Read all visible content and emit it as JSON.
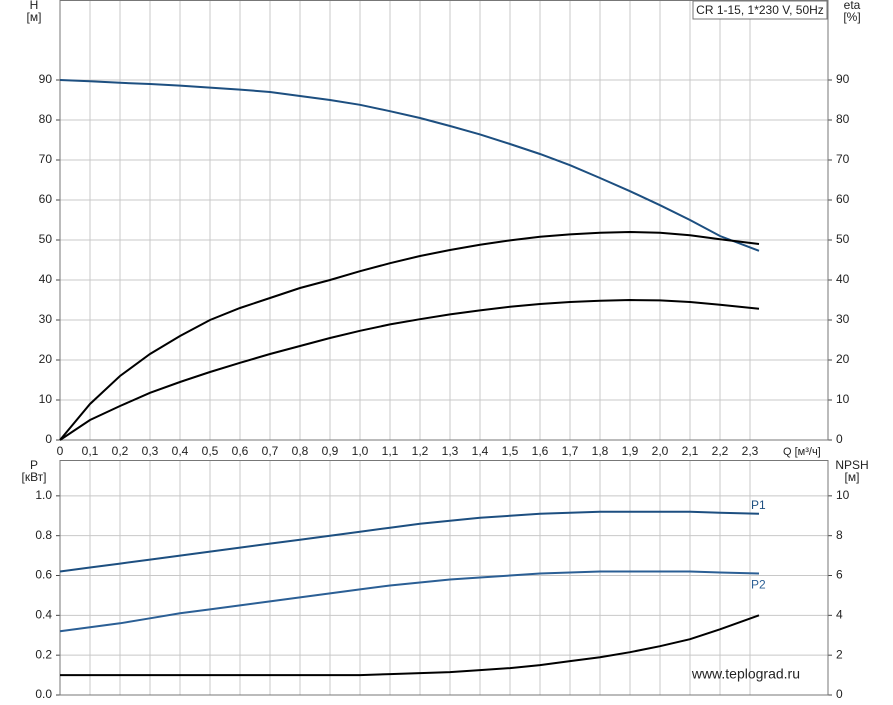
{
  "chart_data": [
    {
      "type": "line",
      "title": "CR 1-15, 1*230 V, 50Hz",
      "y_label": [
        "H",
        "[м]"
      ],
      "y2_label": [
        "eta",
        "[%]"
      ],
      "x_label": "Q [м³/ч]",
      "x": [
        0,
        0.1,
        0.2,
        0.3,
        0.4,
        0.5,
        0.6,
        0.7,
        0.8,
        0.9,
        1.0,
        1.1,
        1.2,
        1.3,
        1.4,
        1.5,
        1.6,
        1.7,
        1.8,
        1.9,
        2.0,
        2.1,
        2.2,
        2.33
      ],
      "xlim": [
        0,
        2.56
      ],
      "xticks": [
        0,
        {
          "value": 0.1,
          "label": "0,1"
        },
        {
          "value": 0.2,
          "label": "0,2"
        },
        {
          "value": 0.3,
          "label": "0,3"
        },
        {
          "value": 0.4,
          "label": "0,4"
        },
        {
          "value": 0.5,
          "label": "0,5"
        },
        {
          "value": 0.6,
          "label": "0,6"
        },
        {
          "value": 0.7,
          "label": "0,7"
        },
        {
          "value": 0.8,
          "label": "0,8"
        },
        {
          "value": 0.9,
          "label": "0,9"
        },
        {
          "value": 1.0,
          "label": "1,0"
        },
        {
          "value": 1.1,
          "label": "1,1"
        },
        {
          "value": 1.2,
          "label": "1,2"
        },
        {
          "value": 1.3,
          "label": "1,3"
        },
        {
          "value": 1.4,
          "label": "1,4"
        },
        {
          "value": 1.5,
          "label": "1,5"
        },
        {
          "value": 1.6,
          "label": "1,6"
        },
        {
          "value": 1.7,
          "label": "1,7"
        },
        {
          "value": 1.8,
          "label": "1,8"
        },
        {
          "value": 1.9,
          "label": "1,9"
        },
        {
          "value": 2.0,
          "label": "2,0"
        },
        {
          "value": 2.1,
          "label": "2,1"
        },
        {
          "value": 2.2,
          "label": "2,2"
        },
        {
          "value": 2.3,
          "label": "2,3"
        }
      ],
      "ylim": [
        0,
        110
      ],
      "yticks": [
        0,
        10,
        20,
        30,
        40,
        50,
        60,
        70,
        80,
        90
      ],
      "y2lim": [
        0,
        110
      ],
      "y2ticks": [
        0,
        10,
        20,
        30,
        40,
        50,
        60,
        70,
        80,
        90
      ],
      "grid": true,
      "series": [
        {
          "color": "#1d4f80",
          "values": [
            90,
            89.7,
            89.3,
            89,
            88.6,
            88.1,
            87.6,
            87,
            86,
            85,
            83.8,
            82.2,
            80.5,
            78.5,
            76.4,
            74,
            71.5,
            68.7,
            65.5,
            62.2,
            58.7,
            55,
            51,
            47.3
          ]
        },
        {
          "color": "#000000",
          "axis": "y2",
          "values": [
            0,
            9,
            16,
            21.5,
            26,
            30,
            33,
            35.5,
            38,
            40,
            42.2,
            44.2,
            46,
            47.5,
            48.8,
            49.9,
            50.8,
            51.4,
            51.8,
            52,
            51.8,
            51.2,
            50.2,
            49
          ]
        },
        {
          "color": "#000000",
          "axis": "y2",
          "values": [
            0,
            5,
            8.5,
            11.8,
            14.5,
            17,
            19.3,
            21.5,
            23.5,
            25.5,
            27.3,
            28.9,
            30.2,
            31.4,
            32.4,
            33.3,
            34,
            34.5,
            34.8,
            35,
            34.9,
            34.5,
            33.8,
            32.8
          ]
        }
      ]
    },
    {
      "type": "line",
      "y_label": [
        "P",
        "[кВт]"
      ],
      "y2_label": [
        "NPSH",
        "[м]"
      ],
      "annotation": "www.teplograd.ru",
      "x": [
        0,
        0.1,
        0.2,
        0.3,
        0.4,
        0.5,
        0.6,
        0.7,
        0.8,
        0.9,
        1.0,
        1.1,
        1.2,
        1.3,
        1.4,
        1.5,
        1.6,
        1.7,
        1.8,
        1.9,
        2.0,
        2.1,
        2.2,
        2.33
      ],
      "xlim": [
        0,
        2.56
      ],
      "xticks": [
        0,
        0.1,
        0.2,
        0.3,
        0.4,
        0.5,
        0.6,
        0.7,
        0.8,
        0.9,
        1.0,
        1.1,
        1.2,
        1.3,
        1.4,
        1.5,
        1.6,
        1.7,
        1.8,
        1.9,
        2.0,
        2.1,
        2.2,
        2.3
      ],
      "ylim": [
        0,
        1.18
      ],
      "yticks": [
        {
          "value": 0,
          "label": "0.0"
        },
        0.2,
        0.4,
        0.6,
        0.8,
        {
          "value": 1.0,
          "label": "1.0"
        }
      ],
      "y2lim": [
        0,
        11.8
      ],
      "y2ticks": [
        0,
        2,
        4,
        6,
        8,
        10
      ],
      "grid": true,
      "series": [
        {
          "name": "P1",
          "color": "#1d4f80",
          "values": [
            0.62,
            0.64,
            0.66,
            0.68,
            0.7,
            0.72,
            0.74,
            0.76,
            0.78,
            0.8,
            0.82,
            0.84,
            0.86,
            0.875,
            0.89,
            0.9,
            0.91,
            0.915,
            0.92,
            0.92,
            0.92,
            0.92,
            0.915,
            0.91
          ]
        },
        {
          "name": "P2",
          "color": "#2b5f95",
          "values": [
            0.32,
            0.34,
            0.36,
            0.385,
            0.41,
            0.43,
            0.45,
            0.47,
            0.49,
            0.51,
            0.53,
            0.55,
            0.565,
            0.58,
            0.59,
            0.6,
            0.61,
            0.615,
            0.62,
            0.62,
            0.62,
            0.62,
            0.615,
            0.61
          ]
        },
        {
          "color": "#000000",
          "axis": "y2",
          "values": [
            1,
            1,
            1,
            1,
            1,
            1,
            1,
            1,
            1,
            1,
            1,
            1.05,
            1.1,
            1.15,
            1.25,
            1.35,
            1.5,
            1.7,
            1.9,
            2.15,
            2.45,
            2.8,
            3.3,
            4.0
          ]
        }
      ]
    }
  ]
}
